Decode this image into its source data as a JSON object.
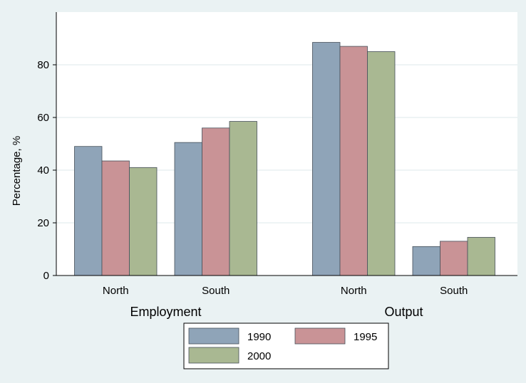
{
  "chart_data": {
    "type": "bar",
    "title": "",
    "ylabel": "Percentage, %",
    "ylim": [
      0,
      100
    ],
    "yticks": [
      0,
      20,
      40,
      60,
      80
    ],
    "grid": true,
    "legend_position": "bottom",
    "groups": [
      {
        "label": "Employment",
        "categories": [
          "North",
          "South"
        ],
        "series": [
          {
            "name": "1990",
            "values": [
              49,
              50.5
            ]
          },
          {
            "name": "1995",
            "values": [
              43.5,
              56
            ]
          },
          {
            "name": "2000",
            "values": [
              41,
              58.5
            ]
          }
        ]
      },
      {
        "label": "Output",
        "categories": [
          "North",
          "South"
        ],
        "series": [
          {
            "name": "1990",
            "values": [
              88.5,
              11
            ]
          },
          {
            "name": "1995",
            "values": [
              87,
              13
            ]
          },
          {
            "name": "2000",
            "values": [
              85,
              14.5
            ]
          }
        ]
      }
    ],
    "colors": {
      "1990": "#8fa4b8",
      "1995": "#c99396",
      "2000": "#a9b892",
      "plot_background": "#ffffff",
      "page_background": "#eaf2f3",
      "grid": "#e4edef"
    }
  }
}
